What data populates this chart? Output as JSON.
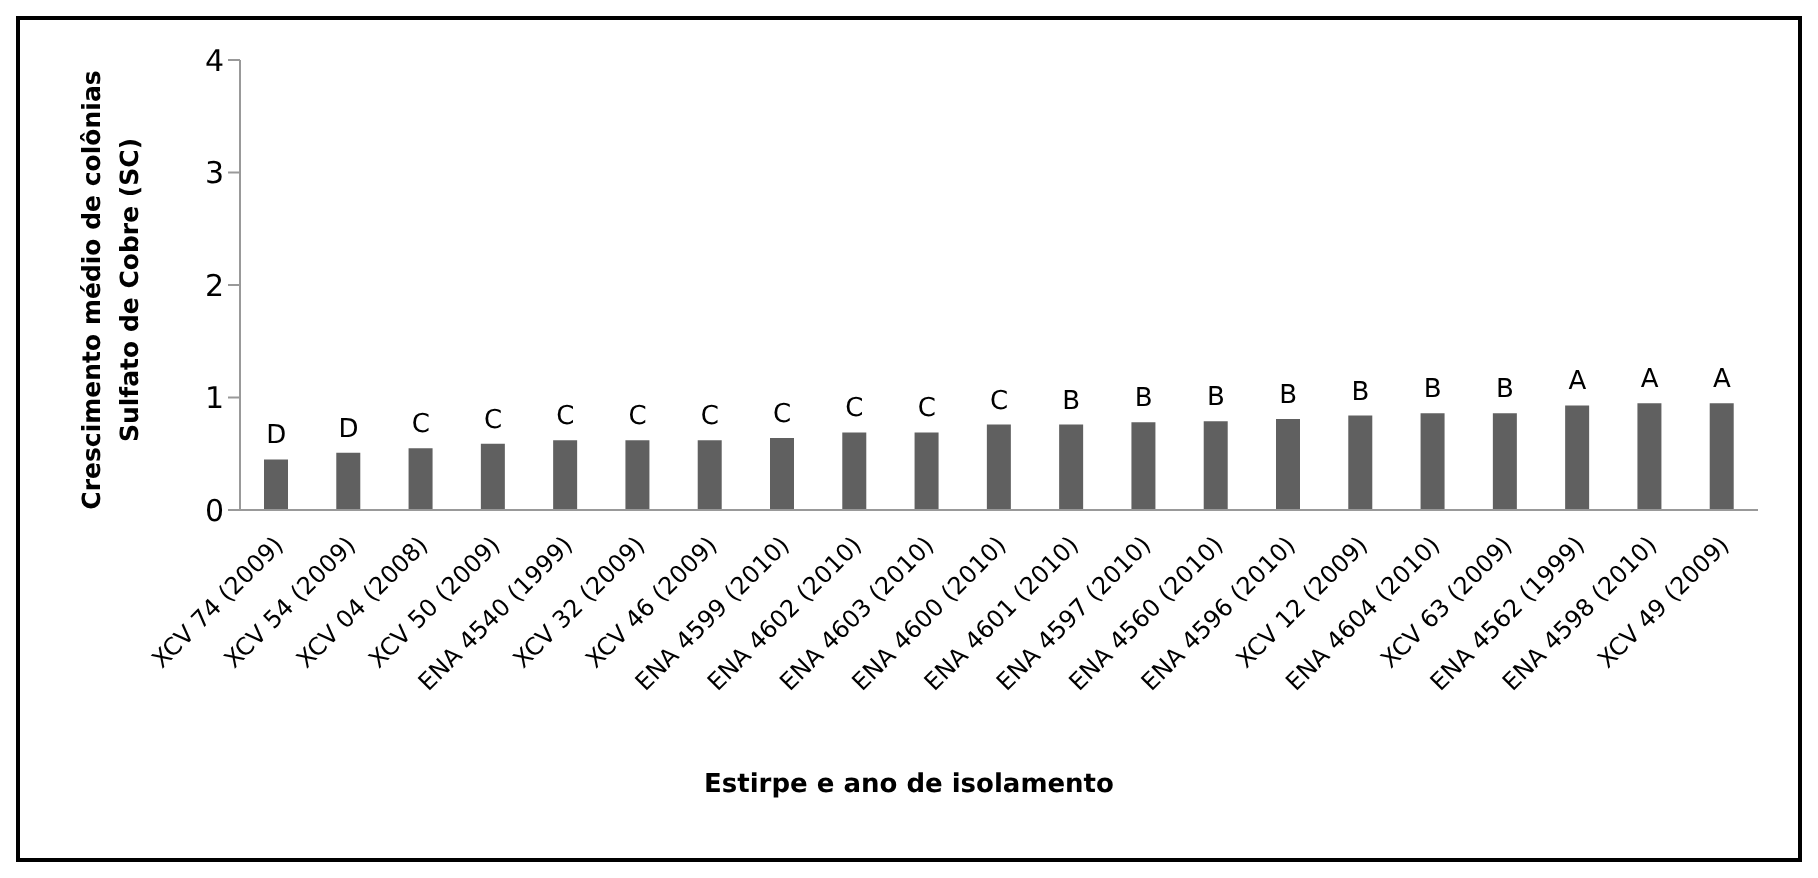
{
  "chart_data": {
    "type": "bar",
    "xlabel": "Estirpe e ano de isolamento",
    "ylabel": "Crescimento médio de colônias Sulfato de Cobre (SC)",
    "categories": [
      "XCV 74 (2009)",
      "XCV 54 (2009)",
      "XCV 04 (2008)",
      "XCV 50 (2009)",
      "ENA 4540 (1999)",
      "XCV 32 (2009)",
      "XCV 46 (2009)",
      "ENA 4599 (2010)",
      "ENA 4602 (2010)",
      "ENA 4603 (2010)",
      "ENA 4600 (2010)",
      "ENA 4601 (2010)",
      "ENA 4597 (2010)",
      "ENA 4560 (2010)",
      "ENA 4596 (2010)",
      "XCV 12  (2009)",
      "ENA 4604 (2010)",
      "XCV  63 (2009)",
      "ENA 4562  (1999)",
      "ENA 4598  (2010)",
      "XCV 49 (2009)"
    ],
    "values": [
      0.45,
      0.51,
      0.55,
      0.59,
      0.62,
      0.62,
      0.62,
      0.64,
      0.69,
      0.69,
      0.76,
      0.76,
      0.78,
      0.79,
      0.81,
      0.84,
      0.86,
      0.86,
      0.93,
      0.95,
      0.95
    ],
    "color": "#606060",
    "ylim": [
      0,
      4
    ],
    "yticks": [
      0,
      1,
      2,
      3,
      4
    ],
    "grid": false,
    "legend": false,
    "annotations": [
      {
        "text": "D",
        "x": "XCV 74 (2009)",
        "y": 0.45
      },
      {
        "text": "D",
        "x": "XCV 54 (2009)",
        "y": 0.51
      },
      {
        "text": "C",
        "x": "XCV 04 (2008)",
        "y": 0.55
      },
      {
        "text": "C",
        "x": "XCV 50 (2009)",
        "y": 0.59
      },
      {
        "text": "C",
        "x": "ENA 4540 (1999)",
        "y": 0.62
      },
      {
        "text": "C",
        "x": "XCV 32 (2009)",
        "y": 0.62
      },
      {
        "text": "C",
        "x": "XCV 46 (2009)",
        "y": 0.62
      },
      {
        "text": "C",
        "x": "ENA 4599 (2010)",
        "y": 0.64
      },
      {
        "text": "C",
        "x": "ENA 4602 (2010)",
        "y": 0.69
      },
      {
        "text": "C",
        "x": "ENA 4603 (2010)",
        "y": 0.69
      },
      {
        "text": "C",
        "x": "ENA 4600 (2010)",
        "y": 0.76
      },
      {
        "text": "B",
        "x": "ENA 4601 (2010)",
        "y": 0.76
      },
      {
        "text": "B",
        "x": "ENA 4597 (2010)",
        "y": 0.78
      },
      {
        "text": "B",
        "x": "ENA 4560 (2010)",
        "y": 0.79
      },
      {
        "text": "B",
        "x": "ENA 4596 (2010)",
        "y": 0.81
      },
      {
        "text": "B",
        "x": "XCV 12  (2009)",
        "y": 0.84
      },
      {
        "text": "B",
        "x": "ENA 4604 (2010)",
        "y": 0.86
      },
      {
        "text": "B",
        "x": "XCV  63 (2009)",
        "y": 0.86
      },
      {
        "text": "A",
        "x": "ENA 4562  (1999)",
        "y": 0.93
      },
      {
        "text": "A",
        "x": "ENA 4598  (2010)",
        "y": 0.95
      },
      {
        "text": "A",
        "x": "XCV 49 (2009)",
        "y": 0.95
      }
    ]
  }
}
